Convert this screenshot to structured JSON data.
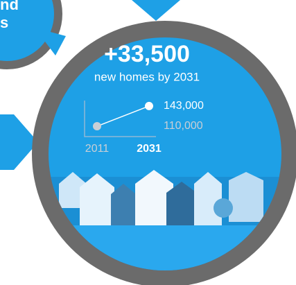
{
  "fragment_text": [
    "nd",
    "s"
  ],
  "headline": "+33,500",
  "subheadline": "new homes by 2031",
  "chart_data": {
    "type": "line",
    "categories": [
      "2011",
      "2031"
    ],
    "values": [
      110000,
      143000
    ],
    "value_labels": [
      "110,000",
      "143,000"
    ],
    "colors": [
      "#c9cfd6",
      "#ffffff"
    ],
    "ylim": [
      93000,
      152000
    ]
  }
}
